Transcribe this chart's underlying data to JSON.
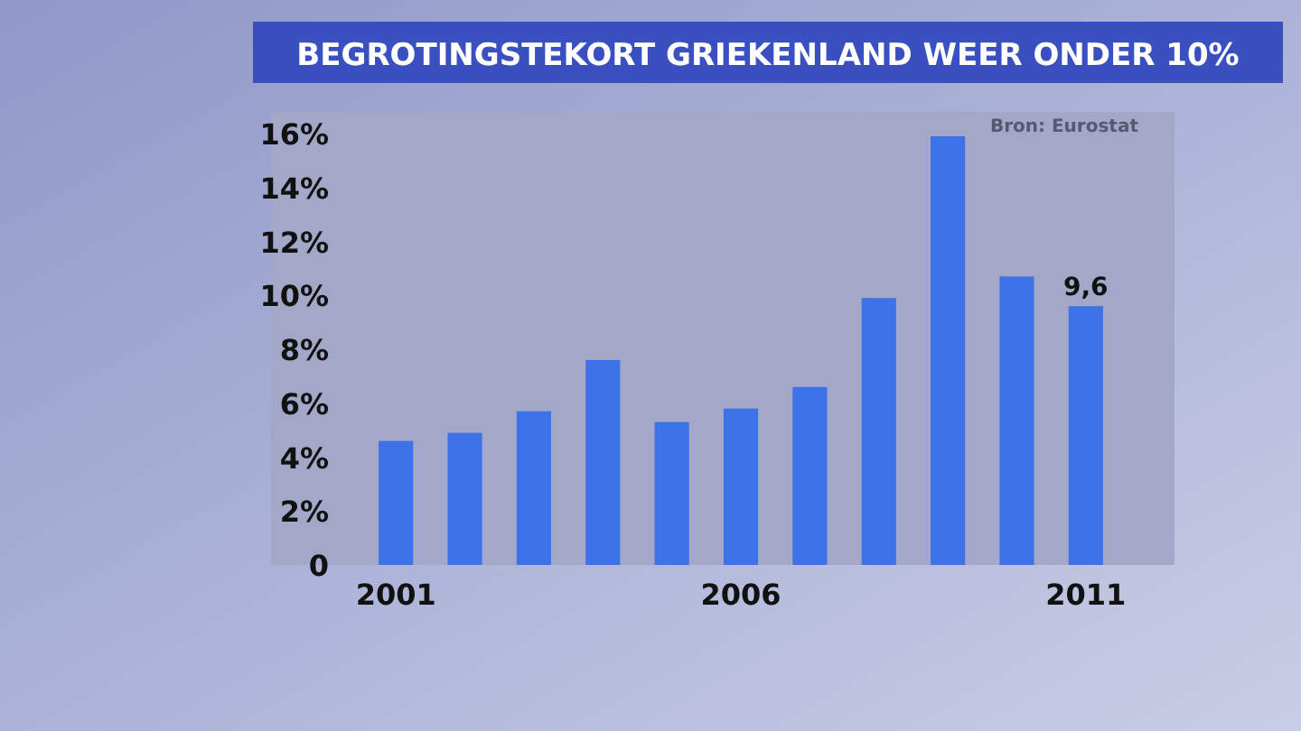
{
  "chart_data": {
    "type": "bar",
    "title": "BEGROTINGSTEKORT GRIEKENLAND WEER ONDER 10%",
    "categories": [
      "2001",
      null,
      null,
      null,
      null,
      "2006",
      null,
      null,
      null,
      null,
      "2011"
    ],
    "values": [
      4.6,
      4.9,
      5.7,
      7.6,
      5.3,
      5.8,
      6.6,
      9.9,
      15.9,
      10.7,
      9.6
    ],
    "value_labels": [
      null,
      null,
      null,
      null,
      null,
      null,
      null,
      null,
      null,
      null,
      "9,6"
    ],
    "color": "#3d72e8",
    "ylim": [
      0,
      16
    ],
    "yticks": [
      0,
      {
        "value": 2,
        "label": "2%"
      },
      {
        "value": 4,
        "label": "4%"
      },
      {
        "value": 6,
        "label": "6%"
      },
      {
        "value": 8,
        "label": "8%"
      },
      {
        "value": 10,
        "label": "10%"
      },
      {
        "value": 12,
        "label": "12%"
      },
      {
        "value": 14,
        "label": "14%"
      },
      {
        "value": 16,
        "label": "16%"
      }
    ],
    "annotations": [
      "Bron: Eurostat"
    ]
  }
}
